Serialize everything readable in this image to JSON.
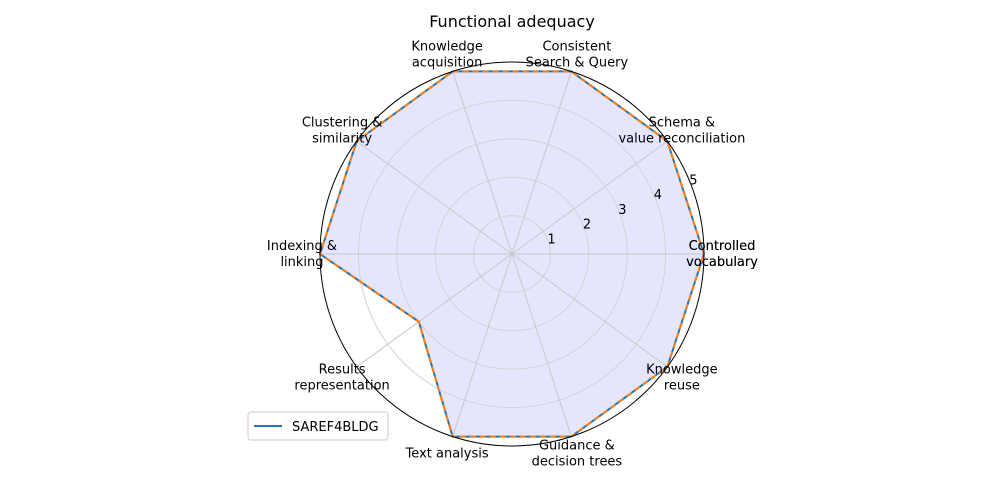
{
  "chart_data": {
    "type": "radar",
    "title": "Functional adequacy",
    "categories": [
      "Controlled\nvocabulary",
      "Schema &\nvalue reconciliation",
      "Consistent\nSearch & Query",
      "Knowledge\nacquisition",
      "Clustering &\nsimilarity",
      "Indexing &\nlinking",
      "Results\nrepresentation",
      "Text analysis",
      "Guidance &\ndecision trees",
      "Knowledge\nreuse"
    ],
    "closing_label": "Controlled\nvocabulary",
    "rlim": [
      0,
      5
    ],
    "radial_ticks": [
      1,
      2,
      3,
      4,
      5
    ],
    "grid": true,
    "legend_position": "lower-left",
    "series": [
      {
        "name": "SAREF4BLDG",
        "values": [
          5,
          5,
          5,
          5,
          5,
          5,
          3,
          5,
          5,
          5
        ],
        "color": "#1f77b4",
        "fill": "#e5e5fd"
      },
      {
        "name": "",
        "values": [
          5,
          5,
          5,
          5,
          5,
          5,
          3,
          5,
          5,
          5
        ],
        "color": "#ff7f0e",
        "dashed": true
      }
    ]
  }
}
